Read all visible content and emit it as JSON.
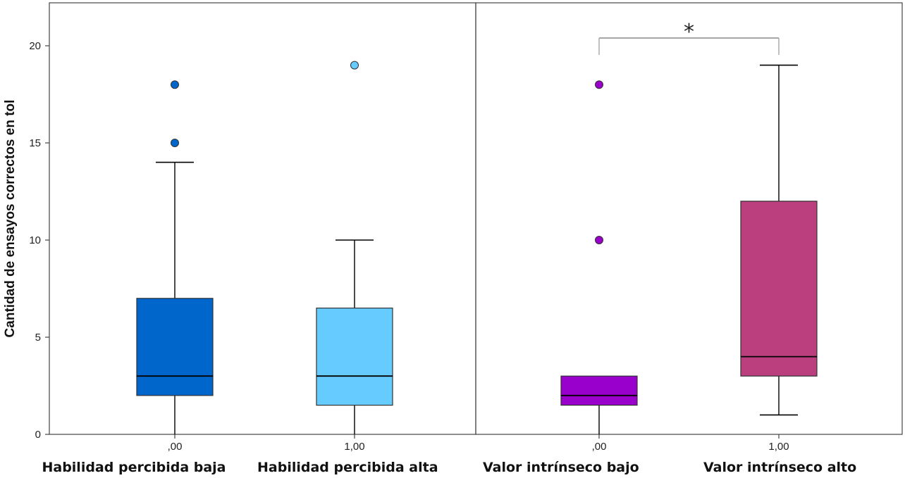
{
  "chart_data": {
    "type": "boxplot",
    "ylabel": "Cantidad de ensayos correctos en tol",
    "ylim": [
      0,
      22
    ],
    "yticks": [
      0,
      5,
      10,
      15,
      20
    ],
    "ytick_labels": [
      "0",
      "5",
      "10",
      "15",
      "20"
    ],
    "grid": false,
    "panels": [
      {
        "boxes": [
          {
            "x_label": ",00",
            "group_label": "Habilidad percibida baja",
            "color": "#0066cc",
            "whisker_low": 0,
            "q1": 2,
            "median": 3,
            "q3": 7,
            "whisker_high": 14,
            "outliers": [
              15,
              18
            ]
          },
          {
            "x_label": "1,00",
            "group_label": "Habilidad percibida alta",
            "color": "#66ccff",
            "whisker_low": 0,
            "q1": 1.5,
            "median": 3,
            "q3": 6.5,
            "whisker_high": 10,
            "outliers": [
              19
            ]
          }
        ]
      },
      {
        "boxes": [
          {
            "x_label": ",00",
            "group_label": "Valor intrínseco bajo",
            "color": "#9900cc",
            "whisker_low": 0,
            "q1": 1.5,
            "median": 2,
            "q3": 3,
            "whisker_high": 3,
            "outliers": [
              10,
              18
            ]
          },
          {
            "x_label": "1,00",
            "group_label": "Valor intrínseco alto",
            "color": "#bb3f7f",
            "whisker_low": 1,
            "q1": 3,
            "median": 4,
            "q3": 12,
            "whisker_high": 19,
            "outliers": []
          }
        ],
        "significance": {
          "marker": "*",
          "y": 20.5
        }
      }
    ]
  }
}
